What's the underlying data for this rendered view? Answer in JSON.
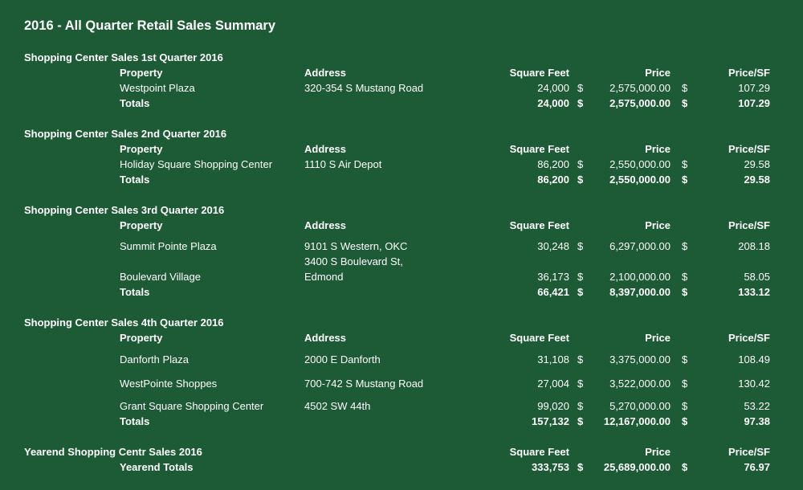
{
  "title": "2016 - All Quarter Retail Sales Summary",
  "headers": {
    "property": "Property",
    "address": "Address",
    "square_feet": "Square Feet",
    "price": "Price",
    "price_sf": "Price/SF"
  },
  "currency_symbol": "$",
  "totals_label": "Totals",
  "quarters": [
    {
      "heading": "Shopping Center Sales 1st Quarter 2016",
      "rows": [
        {
          "property": "Westpoint Plaza",
          "address": "320-354 S Mustang Road",
          "sqft": "24,000",
          "price": "2,575,000.00",
          "price_sf": "107.29"
        }
      ],
      "totals": {
        "sqft": "24,000",
        "price": "2,575,000.00",
        "price_sf": "107.29"
      }
    },
    {
      "heading": "Shopping Center Sales 2nd Quarter 2016",
      "rows": [
        {
          "property": "Holiday Square Shopping Center",
          "address": "1110 S Air Depot",
          "sqft": "86,200",
          "price": "2,550,000.00",
          "price_sf": "29.58"
        }
      ],
      "totals": {
        "sqft": "86,200",
        "price": "2,550,000.00",
        "price_sf": "29.58"
      }
    },
    {
      "heading": "Shopping Center Sales 3rd Quarter 2016",
      "rows": [
        {
          "property": "Summit Pointe Plaza",
          "address": "9101 S Western, OKC",
          "sqft": "30,248",
          "price": "6,297,000.00",
          "price_sf": "208.18"
        },
        {
          "property": "Boulevard Village",
          "address_line1": "3400 S Boulevard St,",
          "address_line2": "Edmond",
          "sqft": "36,173",
          "price": "2,100,000.00",
          "price_sf": "58.05"
        }
      ],
      "totals": {
        "sqft": "66,421",
        "price": "8,397,000.00",
        "price_sf": "133.12"
      }
    },
    {
      "heading": "Shopping Center Sales 4th Quarter 2016",
      "rows": [
        {
          "property": "Danforth Plaza",
          "address": "2000 E Danforth",
          "sqft": "31,108",
          "price": "3,375,000.00",
          "price_sf": "108.49"
        },
        {
          "property": "WestPointe Shoppes",
          "address": "700-742 S Mustang Road",
          "sqft": "27,004",
          "price": "3,522,000.00",
          "price_sf": "130.42"
        },
        {
          "property": "Grant Square Shopping Center",
          "address": "4502 SW 44th",
          "sqft": "99,020",
          "price": "5,270,000.00",
          "price_sf": "53.22"
        }
      ],
      "totals": {
        "sqft": "157,132",
        "price": "12,167,000.00",
        "price_sf": "97.38"
      }
    }
  ],
  "yearend": {
    "heading": "Yearend Shopping Centr Sales 2016",
    "totals_label": "Yearend Totals",
    "totals": {
      "sqft": "333,753",
      "price": "25,689,000.00",
      "price_sf": "76.97"
    }
  }
}
